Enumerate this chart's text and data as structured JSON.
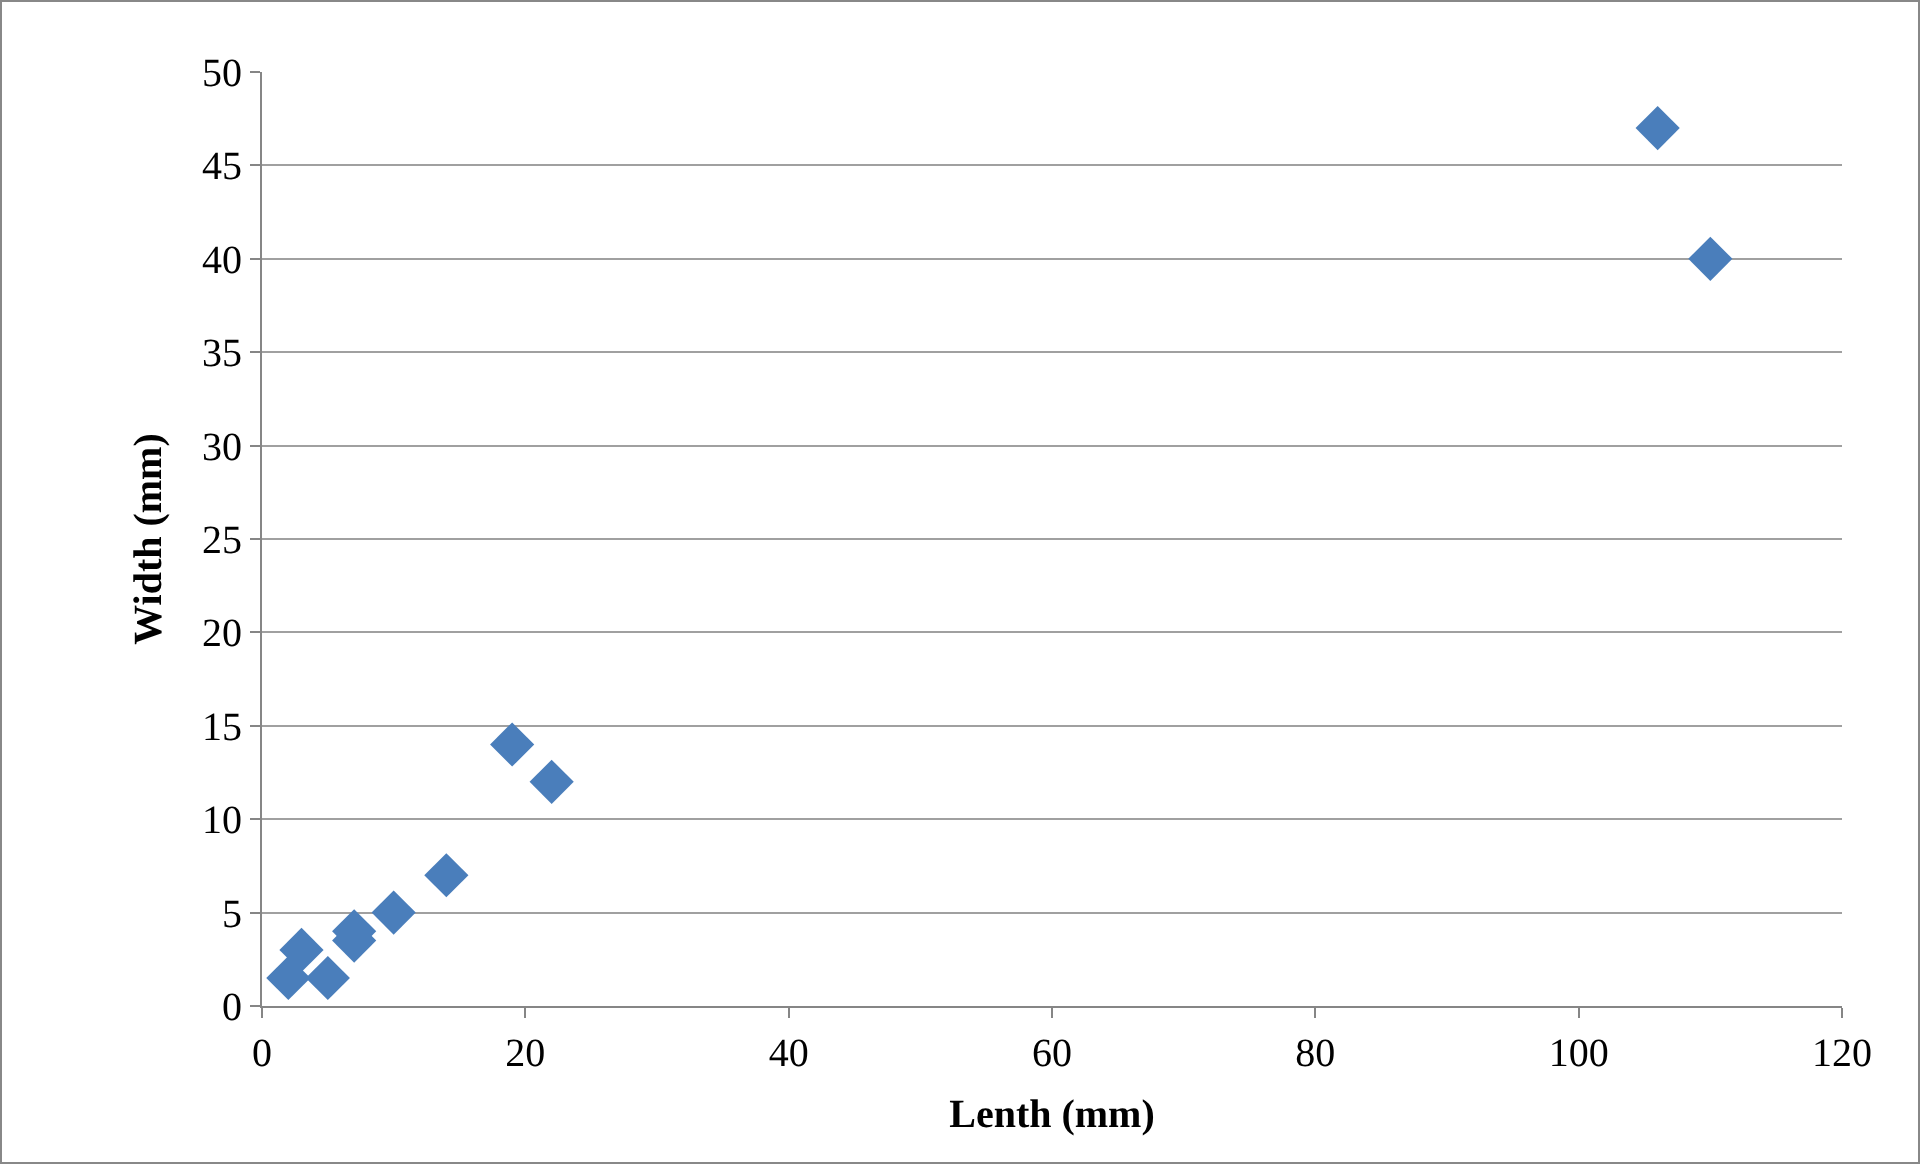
{
  "chart_data": {
    "type": "scatter",
    "xlabel": "Lenth (mm)",
    "ylabel": "Width (mm)",
    "x": [
      2,
      3,
      5,
      7,
      7,
      10,
      14,
      19,
      22,
      106,
      110
    ],
    "values": [
      1.5,
      3,
      1.5,
      3.5,
      4,
      5,
      7,
      14,
      12,
      47,
      40
    ],
    "color": "#4a7ebb",
    "marker": "diamond",
    "grid": "y",
    "legend": false,
    "xlim": [
      0,
      120
    ],
    "xticks": [
      0,
      20,
      40,
      60,
      80,
      100,
      120
    ],
    "ylim": [
      0,
      50
    ],
    "yticks": [
      0,
      5,
      10,
      15,
      20,
      25,
      30,
      35,
      40,
      45,
      50
    ]
  }
}
